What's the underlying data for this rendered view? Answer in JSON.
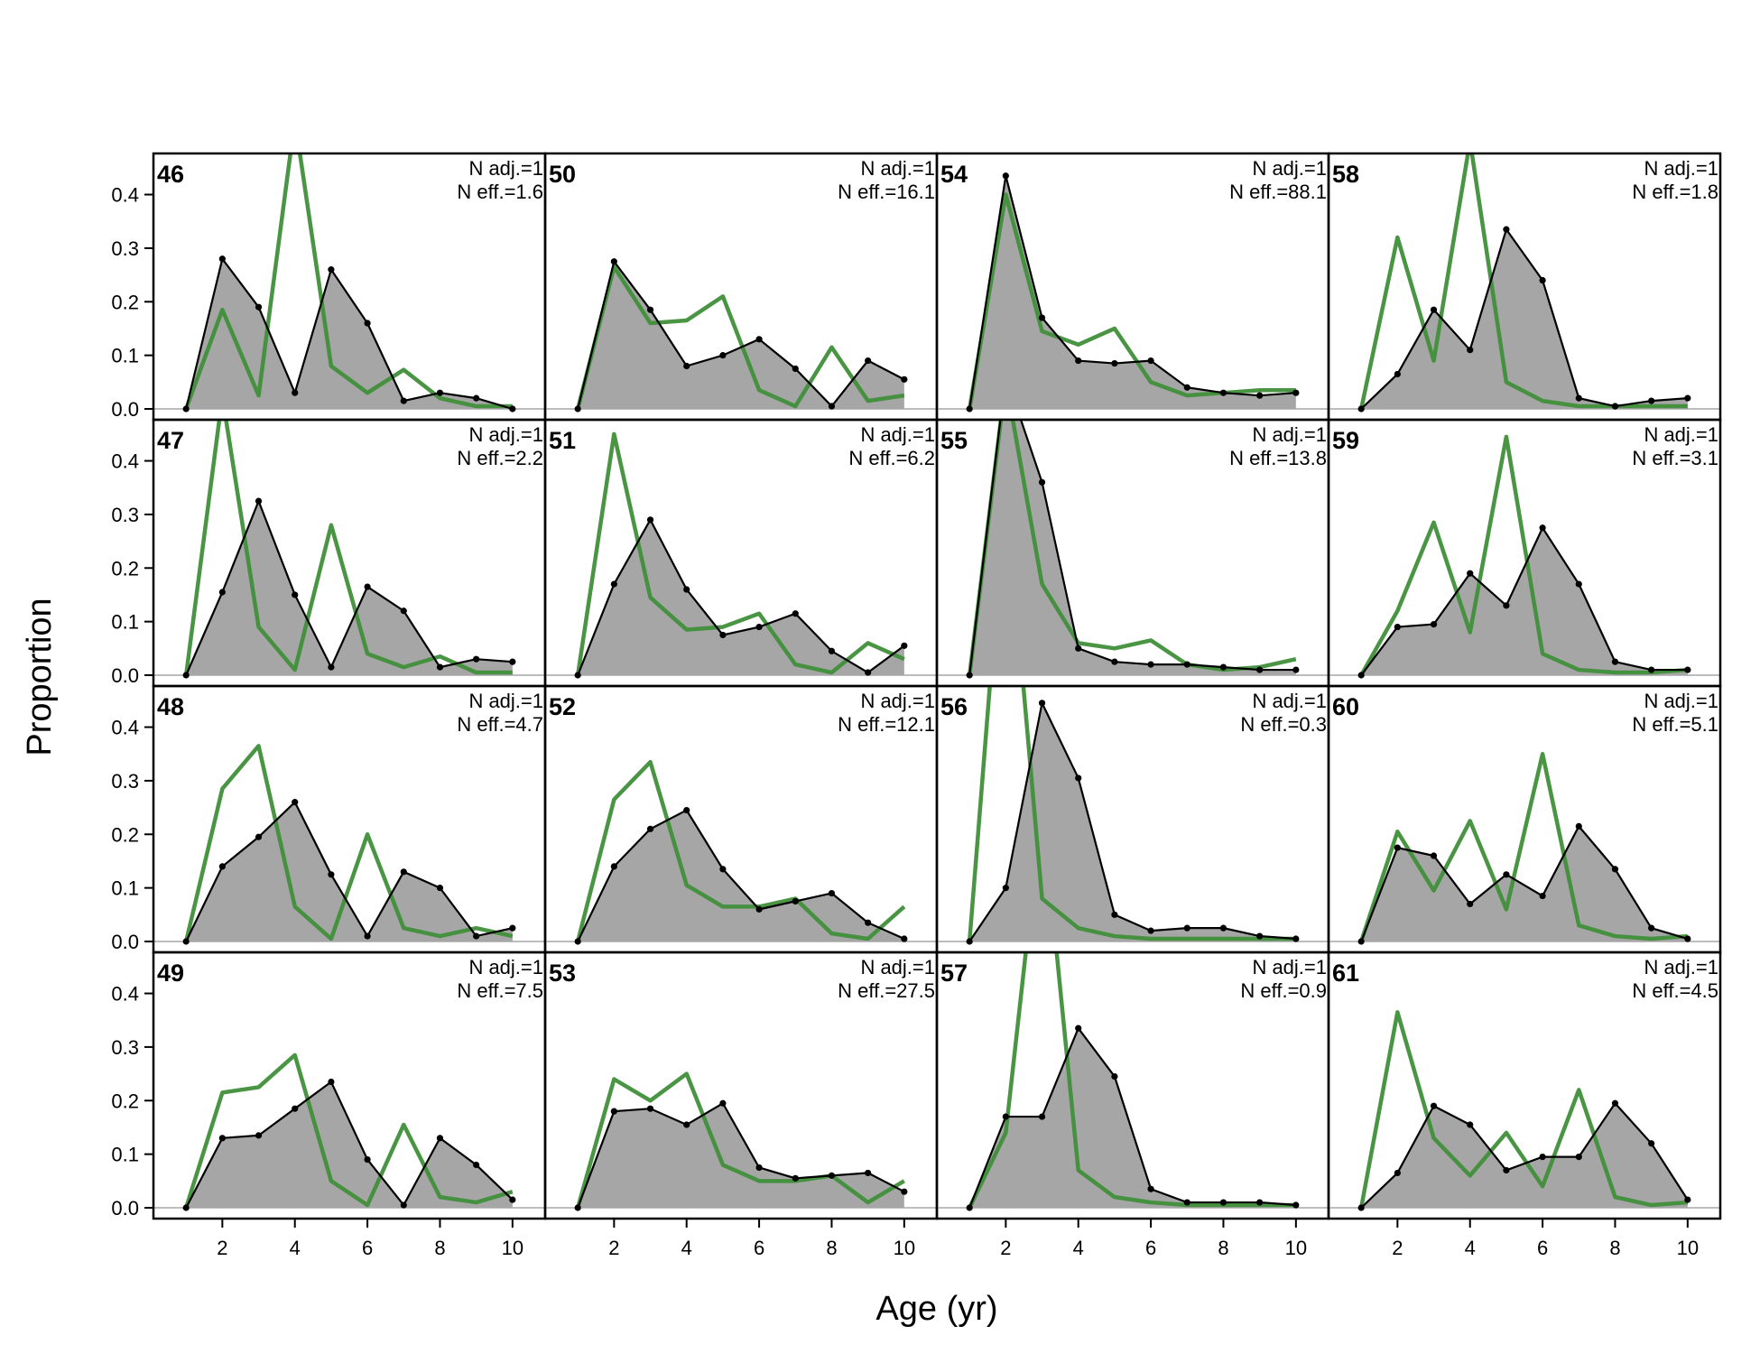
{
  "chart_data": {
    "type": "area",
    "xlabel": "Age (yr)",
    "ylabel": "Proportion",
    "x": [
      1,
      2,
      3,
      4,
      5,
      6,
      7,
      8,
      9,
      10
    ],
    "xticks": [
      2,
      4,
      6,
      8,
      10
    ],
    "yticks": [
      0.0,
      0.1,
      0.2,
      0.3,
      0.4
    ],
    "ytick_labels": [
      "0.0",
      "0.1",
      "0.2",
      "0.3",
      "0.4"
    ],
    "ylim": [
      0,
      0.47
    ],
    "xlim": [
      0.1,
      10.9
    ],
    "colors": {
      "observed_fill": "#a6a6a6",
      "observed_line": "#000000",
      "expected_line": "#3f8f3a",
      "baseline": "#bdbdbd"
    },
    "panels": [
      {
        "id": "46",
        "n_adj": "N adj.=1",
        "n_eff": "N eff.=1.6",
        "observed": [
          0.0,
          0.28,
          0.19,
          0.03,
          0.26,
          0.16,
          0.015,
          0.03,
          0.02,
          0.0
        ],
        "expected": [
          0.0,
          0.185,
          0.025,
          0.54,
          0.08,
          0.03,
          0.073,
          0.02,
          0.005,
          0.005
        ]
      },
      {
        "id": "50",
        "n_adj": "N adj.=1",
        "n_eff": "N eff.=16.1",
        "observed": [
          0.0,
          0.275,
          0.185,
          0.08,
          0.1,
          0.13,
          0.075,
          0.005,
          0.09,
          0.055
        ],
        "expected": [
          0.0,
          0.265,
          0.16,
          0.165,
          0.21,
          0.035,
          0.005,
          0.115,
          0.015,
          0.025
        ]
      },
      {
        "id": "54",
        "n_adj": "N adj.=1",
        "n_eff": "N eff.=88.1",
        "observed": [
          0.0,
          0.435,
          0.17,
          0.09,
          0.085,
          0.09,
          0.04,
          0.03,
          0.025,
          0.03
        ],
        "expected": [
          0.0,
          0.4,
          0.145,
          0.12,
          0.15,
          0.05,
          0.025,
          0.03,
          0.035,
          0.035
        ]
      },
      {
        "id": "58",
        "n_adj": "N adj.=1",
        "n_eff": "N eff.=1.8",
        "observed": [
          0.0,
          0.065,
          0.185,
          0.11,
          0.335,
          0.24,
          0.02,
          0.005,
          0.015,
          0.02
        ],
        "expected": [
          0.0,
          0.32,
          0.09,
          0.5,
          0.05,
          0.015,
          0.005,
          0.005,
          0.005,
          0.005
        ]
      },
      {
        "id": "47",
        "n_adj": "N adj.=1",
        "n_eff": "N eff.=2.2",
        "observed": [
          0.0,
          0.155,
          0.325,
          0.15,
          0.015,
          0.165,
          0.12,
          0.015,
          0.03,
          0.025
        ],
        "expected": [
          0.0,
          0.52,
          0.09,
          0.01,
          0.28,
          0.04,
          0.015,
          0.035,
          0.005,
          0.005
        ]
      },
      {
        "id": "51",
        "n_adj": "N adj.=1",
        "n_eff": "N eff.=6.2",
        "observed": [
          0.0,
          0.17,
          0.29,
          0.16,
          0.075,
          0.09,
          0.115,
          0.045,
          0.005,
          0.055
        ],
        "expected": [
          0.0,
          0.45,
          0.145,
          0.085,
          0.09,
          0.115,
          0.02,
          0.005,
          0.06,
          0.03
        ]
      },
      {
        "id": "55",
        "n_adj": "N adj.=1",
        "n_eff": "N eff.=13.8",
        "observed": [
          0.0,
          0.56,
          0.36,
          0.05,
          0.025,
          0.02,
          0.02,
          0.015,
          0.01,
          0.01
        ],
        "expected": [
          0.0,
          0.55,
          0.17,
          0.06,
          0.05,
          0.065,
          0.02,
          0.01,
          0.015,
          0.03
        ]
      },
      {
        "id": "59",
        "n_adj": "N adj.=1",
        "n_eff": "N eff.=3.1",
        "observed": [
          0.0,
          0.09,
          0.095,
          0.19,
          0.13,
          0.275,
          0.17,
          0.025,
          0.01,
          0.01
        ],
        "expected": [
          0.0,
          0.12,
          0.285,
          0.08,
          0.445,
          0.04,
          0.01,
          0.005,
          0.005,
          0.01
        ]
      },
      {
        "id": "48",
        "n_adj": "N adj.=1",
        "n_eff": "N eff.=4.7",
        "observed": [
          0.0,
          0.14,
          0.195,
          0.26,
          0.125,
          0.01,
          0.13,
          0.1,
          0.01,
          0.025
        ],
        "expected": [
          0.0,
          0.285,
          0.365,
          0.065,
          0.005,
          0.2,
          0.025,
          0.01,
          0.025,
          0.01
        ]
      },
      {
        "id": "52",
        "n_adj": "N adj.=1",
        "n_eff": "N eff.=12.1",
        "observed": [
          0.0,
          0.14,
          0.21,
          0.245,
          0.135,
          0.06,
          0.075,
          0.09,
          0.035,
          0.005
        ],
        "expected": [
          0.0,
          0.265,
          0.335,
          0.105,
          0.065,
          0.065,
          0.08,
          0.015,
          0.005,
          0.065
        ]
      },
      {
        "id": "56",
        "n_adj": "N adj.=1",
        "n_eff": "N eff.=0.3",
        "observed": [
          0.0,
          0.1,
          0.445,
          0.305,
          0.05,
          0.02,
          0.025,
          0.025,
          0.01,
          0.005
        ],
        "expected": [
          0.0,
          0.85,
          0.08,
          0.025,
          0.01,
          0.005,
          0.005,
          0.005,
          0.005,
          0.005
        ]
      },
      {
        "id": "60",
        "n_adj": "N adj.=1",
        "n_eff": "N eff.=5.1",
        "observed": [
          0.0,
          0.175,
          0.16,
          0.07,
          0.125,
          0.085,
          0.215,
          0.135,
          0.025,
          0.005
        ],
        "expected": [
          0.0,
          0.205,
          0.095,
          0.225,
          0.06,
          0.35,
          0.03,
          0.01,
          0.005,
          0.01
        ]
      },
      {
        "id": "49",
        "n_adj": "N adj.=1",
        "n_eff": "N eff.=7.5",
        "observed": [
          0.0,
          0.13,
          0.135,
          0.185,
          0.235,
          0.09,
          0.005,
          0.13,
          0.08,
          0.015
        ],
        "expected": [
          0.0,
          0.215,
          0.225,
          0.285,
          0.05,
          0.005,
          0.155,
          0.02,
          0.01,
          0.03
        ]
      },
      {
        "id": "53",
        "n_adj": "N adj.=1",
        "n_eff": "N eff.=27.5",
        "observed": [
          0.0,
          0.18,
          0.185,
          0.155,
          0.195,
          0.075,
          0.055,
          0.06,
          0.065,
          0.03
        ],
        "expected": [
          0.0,
          0.24,
          0.2,
          0.25,
          0.08,
          0.05,
          0.05,
          0.06,
          0.01,
          0.05
        ]
      },
      {
        "id": "57",
        "n_adj": "N adj.=1",
        "n_eff": "N eff.=0.9",
        "observed": [
          0.0,
          0.17,
          0.17,
          0.335,
          0.245,
          0.035,
          0.01,
          0.01,
          0.01,
          0.005
        ],
        "expected": [
          0.0,
          0.14,
          0.75,
          0.07,
          0.02,
          0.01,
          0.005,
          0.005,
          0.005,
          0.005
        ]
      },
      {
        "id": "61",
        "n_adj": "N adj.=1",
        "n_eff": "N eff.=4.5",
        "observed": [
          0.0,
          0.065,
          0.19,
          0.155,
          0.07,
          0.095,
          0.095,
          0.195,
          0.12,
          0.015
        ],
        "expected": [
          0.0,
          0.365,
          0.13,
          0.06,
          0.14,
          0.04,
          0.22,
          0.02,
          0.005,
          0.01
        ]
      }
    ]
  }
}
